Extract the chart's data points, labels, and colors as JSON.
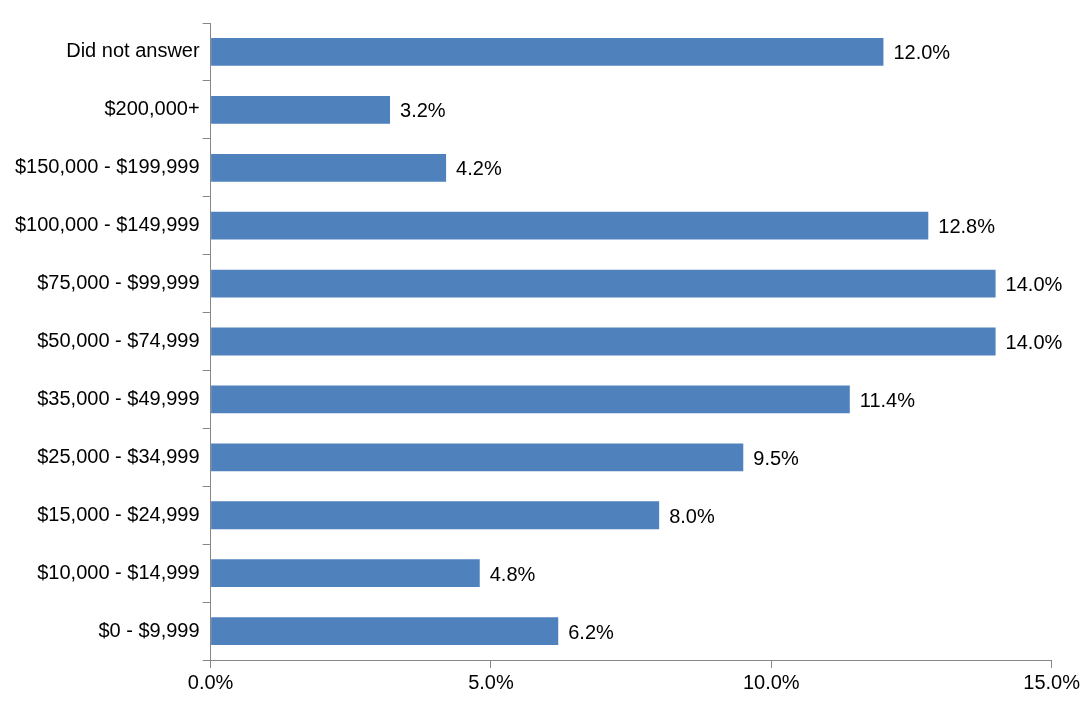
{
  "chart_data": {
    "type": "bar",
    "orientation": "horizontal",
    "categories": [
      "Did not answer",
      "$200,000+",
      "$150,000 - $199,999",
      "$100,000 - $149,999",
      "$75,000 - $99,999",
      "$50,000 - $74,999",
      "$35,000 - $49,999",
      "$25,000 - $34,999",
      "$15,000 - $24,999",
      "$10,000 - $14,999",
      "$0 - $9,999"
    ],
    "values": [
      12.0,
      3.2,
      4.2,
      12.8,
      14.0,
      14.0,
      11.4,
      9.5,
      8.0,
      4.8,
      6.2
    ],
    "value_labels": [
      "12.0%",
      "3.2%",
      "4.2%",
      "12.8%",
      "14.0%",
      "14.0%",
      "11.4%",
      "9.5%",
      "8.0%",
      "4.8%",
      "6.2%"
    ],
    "color": "#4f81bd",
    "xlim": [
      0,
      15
    ],
    "xticks": [
      {
        "value": 0,
        "label": "0.0%"
      },
      {
        "value": 5,
        "label": "5.0%"
      },
      {
        "value": 10,
        "label": "10.0%"
      },
      {
        "value": 15,
        "label": "15.0%"
      }
    ],
    "grid": false,
    "legend": false
  }
}
